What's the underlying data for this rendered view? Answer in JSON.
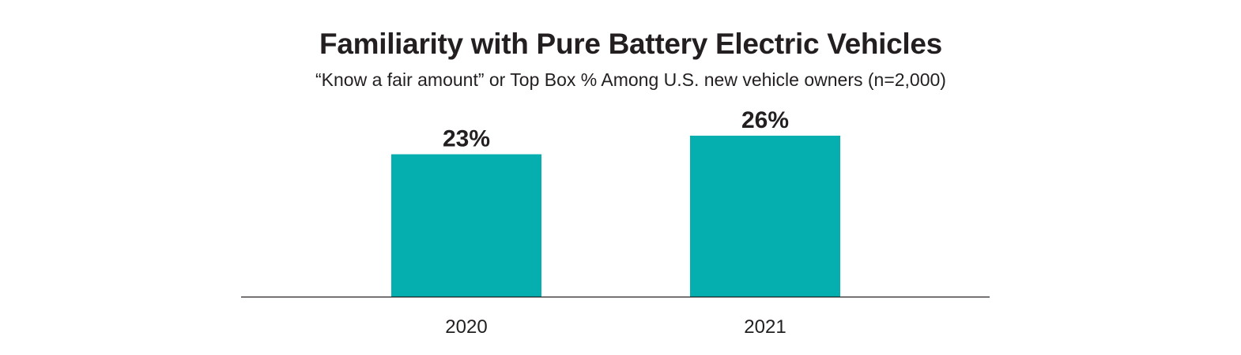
{
  "colors": {
    "bar": "#05AFAF",
    "axis": "#231f20",
    "text": "#231f20"
  },
  "chart_data": {
    "type": "bar",
    "title": "Familiarity with Pure Battery Electric Vehicles",
    "subtitle": "“Know a fair amount” or Top Box % Among U.S. new vehicle owners (n=2,000)",
    "categories": [
      "2020",
      "2021"
    ],
    "values": [
      23,
      26
    ],
    "data_labels": [
      "23%",
      "26%"
    ],
    "xlabel": "",
    "ylabel": "",
    "ylim": [
      0,
      26
    ],
    "grid": false,
    "legend": "none"
  }
}
